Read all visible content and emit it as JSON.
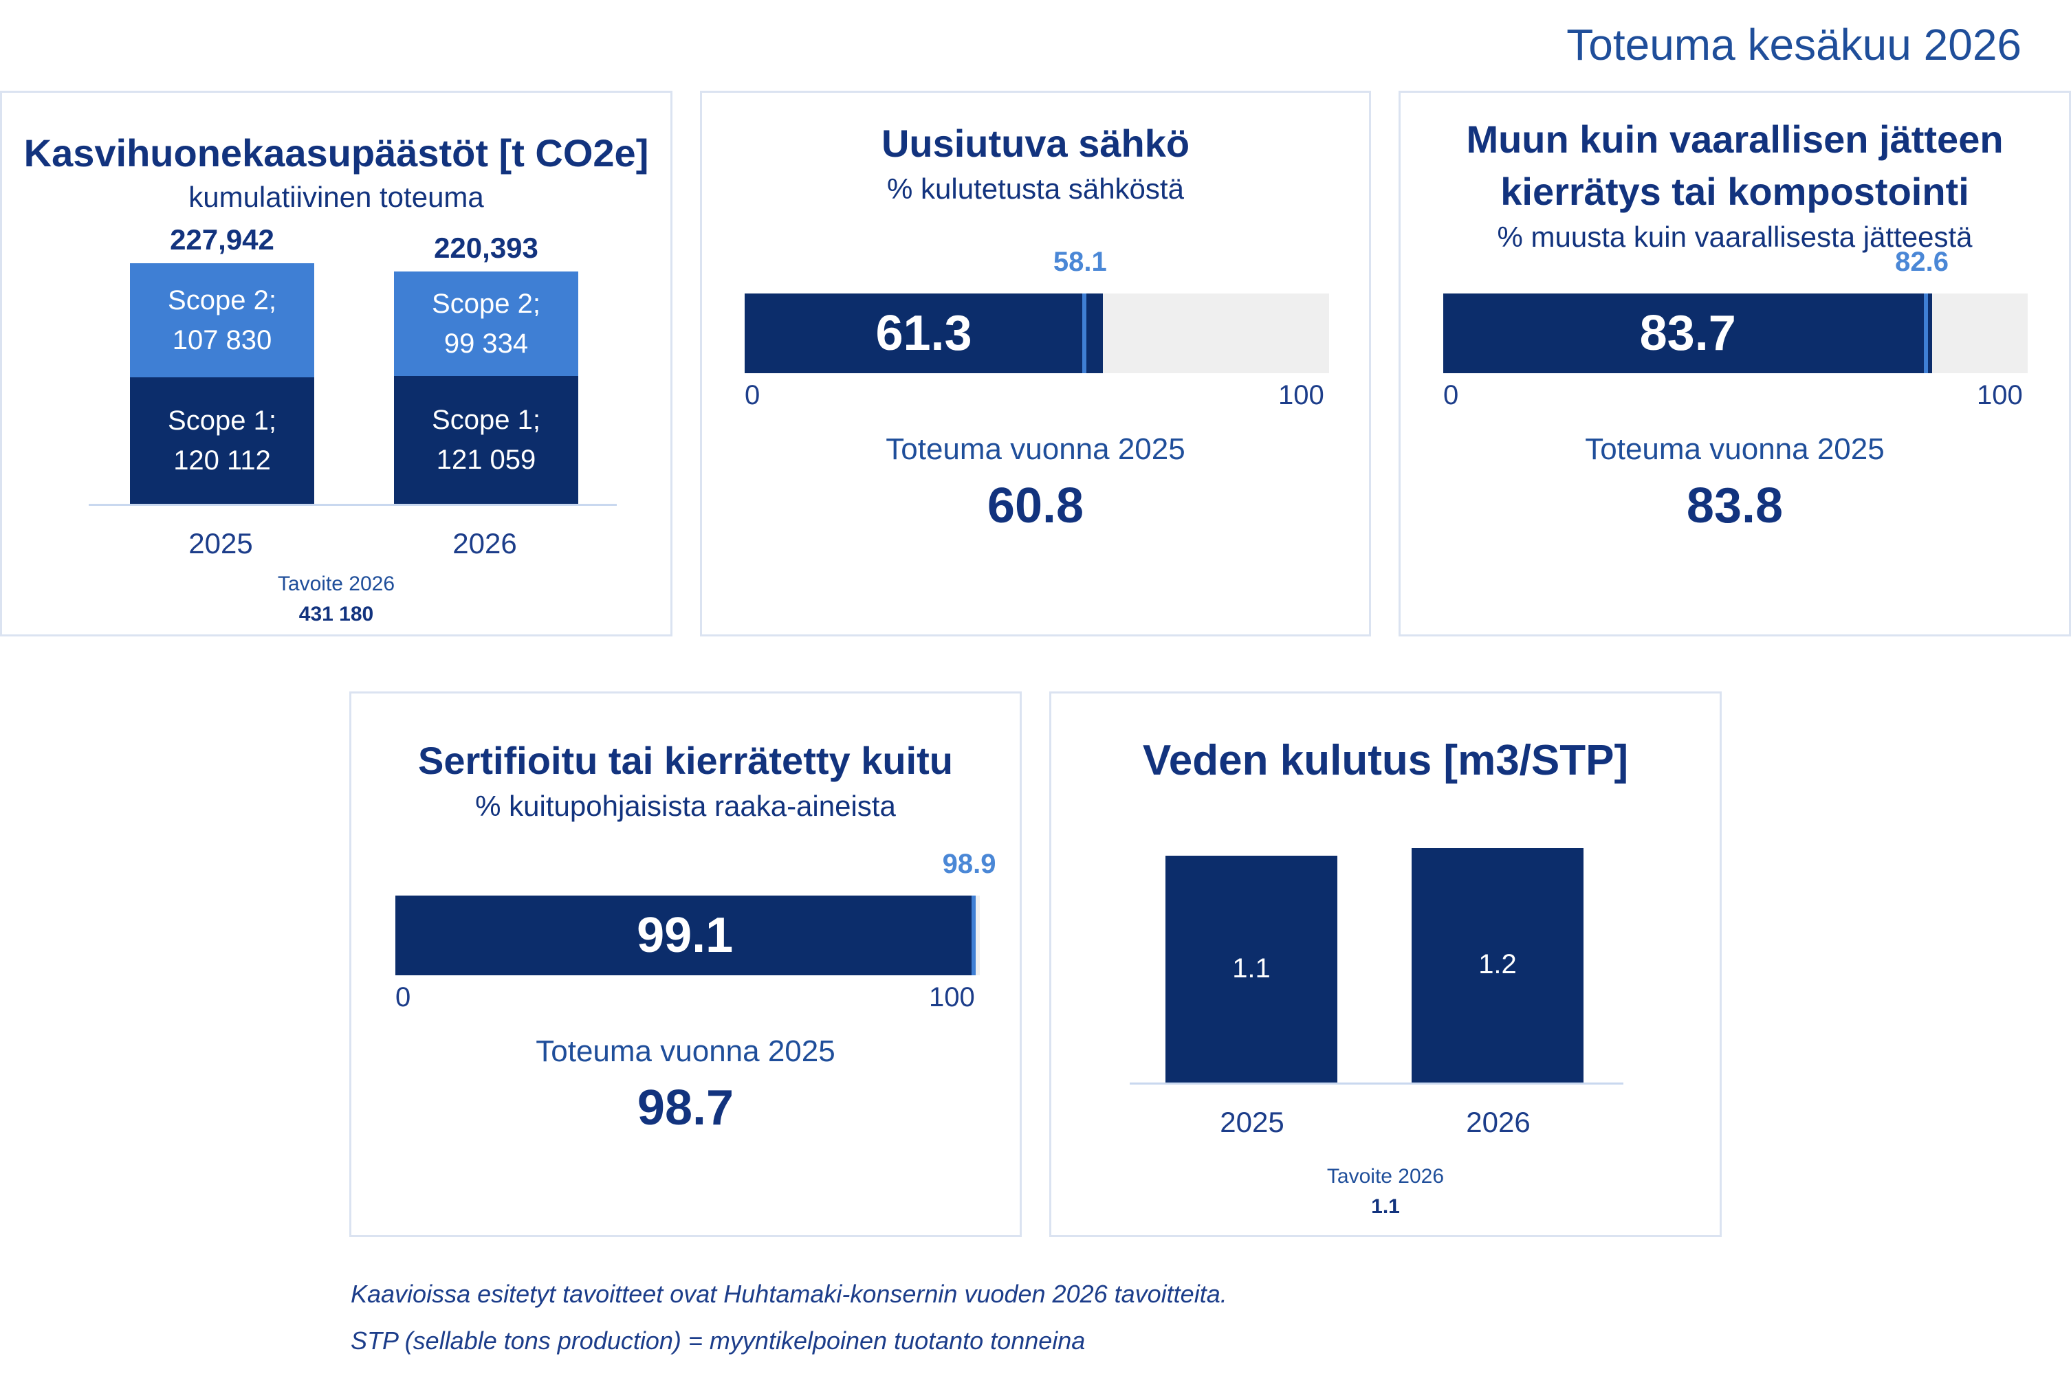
{
  "page_title": "Toteuma kesäkuu 2026",
  "colors": {
    "dark_navy": "#0c2d6b",
    "light_blue": "#3f7fd4",
    "marker_blue": "#4a87d6",
    "track_grey": "#efefef"
  },
  "panels": {
    "ghg": {
      "title": "Kasvihuonekaasupäästöt [t CO2e]",
      "subtitle": "kumulatiivinen toteuma",
      "target_label": "Tavoite 2026",
      "target_value": "431 180"
    },
    "electricity": {
      "title": "Uusiutuva sähkö",
      "subtitle": "% kulutetusta sähköstä",
      "prev_label": "Toteuma vuonna 2025",
      "prev_value": "60.8"
    },
    "waste": {
      "title_line1": "Muun kuin vaarallisen jätteen",
      "title_line2": "kierrätys tai kompostointi",
      "subtitle": "% muusta kuin vaarallisesta jätteestä",
      "prev_label": "Toteuma vuonna 2025",
      "prev_value": "83.8"
    },
    "fiber": {
      "title": "Sertifioitu tai kierrätetty kuitu",
      "subtitle": "% kuitupohjaisista raaka-aineista",
      "prev_label": "Toteuma vuonna 2025",
      "prev_value": "98.7"
    },
    "water": {
      "title": "Veden kulutus [m3/STP]",
      "target_label": "Tavoite 2026",
      "target_value": "1.1"
    }
  },
  "chart_data": [
    {
      "type": "bar",
      "stacked": true,
      "title": "Kasvihuonekaasupäästöt [t CO2e]",
      "categories": [
        "2025",
        "2026"
      ],
      "totals_labels": [
        "227,942",
        "220,393"
      ],
      "series": [
        {
          "name": "Scope 1",
          "values": [
            120112,
            121059
          ],
          "labels": [
            "Scope 1;",
            "Scope 1;"
          ],
          "value_labels": [
            "120 112",
            "121 059"
          ],
          "color": "#0c2d6b"
        },
        {
          "name": "Scope 2",
          "values": [
            107830,
            99334
          ],
          "labels": [
            "Scope 2;",
            "Scope 2;"
          ],
          "value_labels": [
            "107 830",
            "99 334"
          ],
          "color": "#3f7fd4"
        }
      ]
    },
    {
      "type": "bar",
      "orientation": "horizontal",
      "title": "Uusiutuva sähkö",
      "value": 61.3,
      "value_label": "61.3",
      "target": 58.1,
      "target_label": "58.1",
      "xlim": [
        0,
        100
      ],
      "tick_labels": [
        "0",
        "100"
      ]
    },
    {
      "type": "bar",
      "orientation": "horizontal",
      "title": "Muun kuin vaarallisen jätteen kierrätys tai kompostointi",
      "value": 83.7,
      "value_label": "83.7",
      "target": 82.6,
      "target_label": "82.6",
      "xlim": [
        0,
        100
      ],
      "tick_labels": [
        "0",
        "100"
      ]
    },
    {
      "type": "bar",
      "orientation": "horizontal",
      "title": "Sertifioitu tai kierrätetty kuitu",
      "value": 99.1,
      "value_label": "99.1",
      "target": 98.9,
      "target_label": "98.9",
      "xlim": [
        0,
        100
      ],
      "tick_labels": [
        "0",
        "100"
      ]
    },
    {
      "type": "bar",
      "title": "Veden kulutus [m3/STP]",
      "categories": [
        "2025",
        "2026"
      ],
      "values": [
        1.13,
        1.17
      ],
      "value_labels": [
        "1.1",
        "1.2"
      ]
    }
  ],
  "footnotes": [
    "Kaavioissa esitetyt tavoitteet ovat Huhtamaki-konsernin vuoden 2026 tavoitteita.",
    "STP (sellable tons production) = myyntikelpoinen tuotanto tonneina"
  ]
}
